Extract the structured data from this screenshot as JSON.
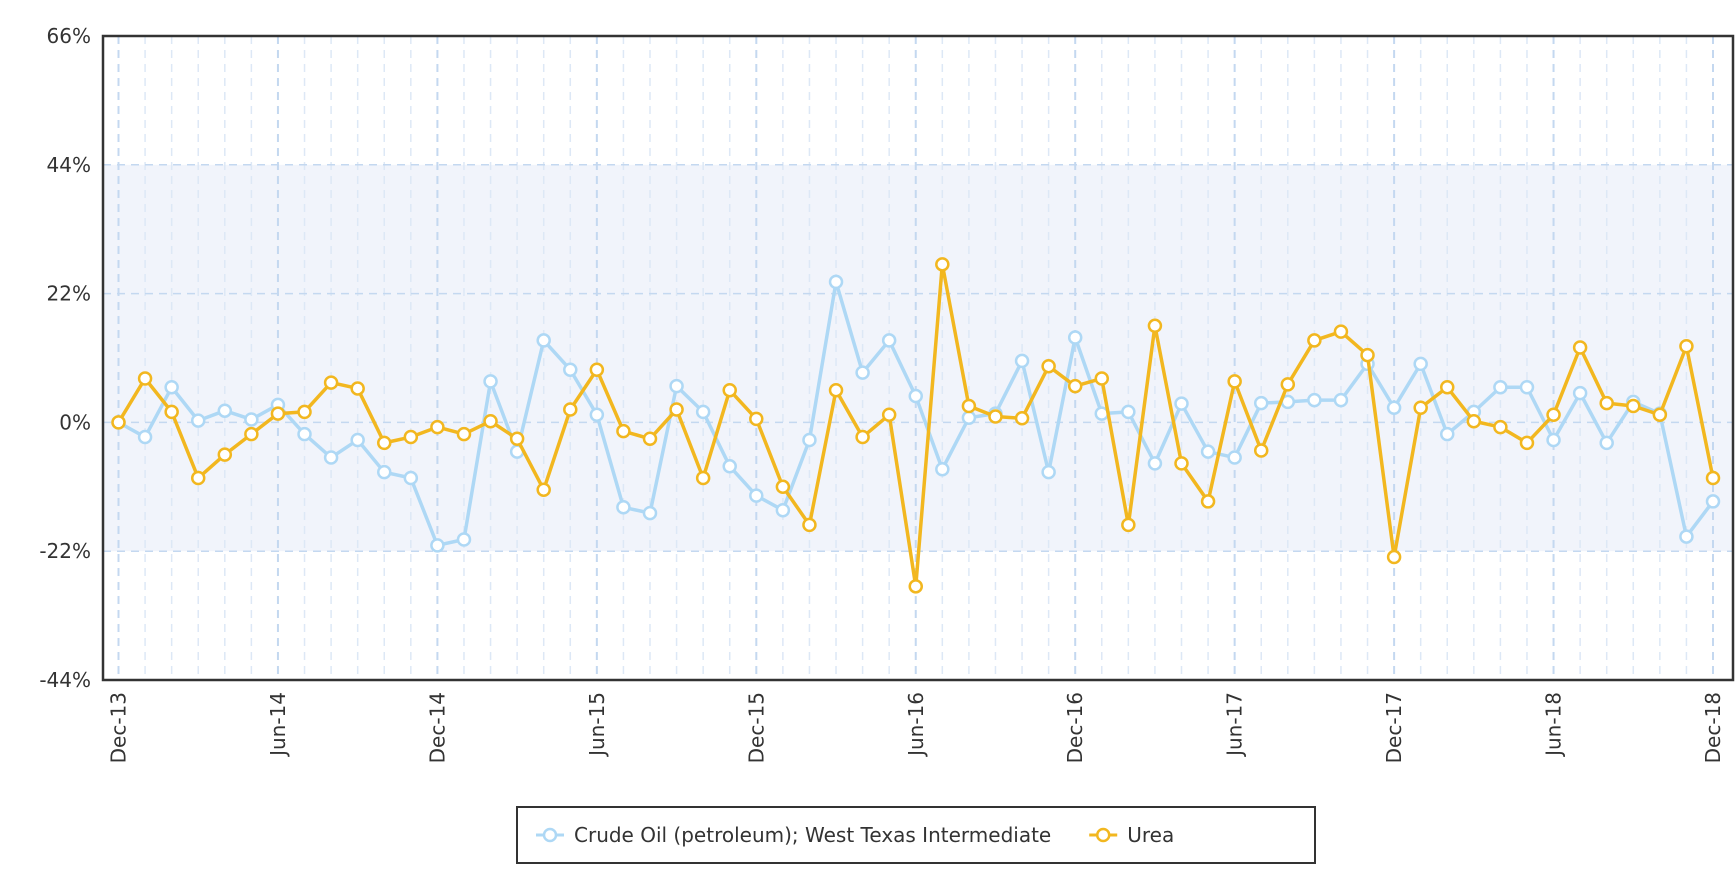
{
  "chart_data": {
    "type": "line",
    "categories": [
      "Dec-13",
      null,
      null,
      null,
      null,
      null,
      "Jun-14",
      null,
      null,
      null,
      null,
      null,
      "Dec-14",
      null,
      null,
      null,
      null,
      null,
      "Jun-15",
      null,
      null,
      null,
      null,
      null,
      "Dec-15",
      null,
      null,
      null,
      null,
      null,
      "Jun-16",
      null,
      null,
      null,
      null,
      null,
      "Dec-16",
      null,
      null,
      null,
      null,
      null,
      "Jun-17",
      null,
      null,
      null,
      null,
      null,
      "Dec-17",
      null,
      null,
      null,
      null,
      null,
      "Jun-18",
      null,
      null,
      null,
      null,
      null,
      "Dec-18"
    ],
    "series": [
      {
        "name": "Crude Oil (petroleum); West Texas Intermediate",
        "color": "#aed8f5",
        "values": [
          0,
          -2.5,
          6,
          0.3,
          2,
          0.5,
          3,
          -2,
          -6,
          -3,
          -8.5,
          -9.5,
          -21,
          -20,
          7,
          -5,
          14,
          9,
          1.3,
          -14.5,
          -15.5,
          6.2,
          1.8,
          -7.5,
          -12.5,
          -15,
          -3,
          24,
          8.5,
          14,
          4.5,
          -8,
          0.8,
          1.5,
          10.5,
          -8.5,
          14.5,
          1.5,
          1.8,
          -7,
          3.2,
          -5,
          -6,
          3.3,
          3.5,
          3.8,
          3.8,
          10,
          2.5,
          10,
          -2,
          1.8,
          6,
          6,
          -3,
          5,
          -3.5,
          3.5,
          1.5,
          -19.5,
          -13.5
        ]
      },
      {
        "name": "Urea",
        "color": "#f2b71f",
        "values": [
          0,
          7.5,
          1.8,
          -9.5,
          -5.5,
          -2,
          1.5,
          1.8,
          6.8,
          5.8,
          -3.5,
          -2.5,
          -0.8,
          -2,
          0.2,
          -2.8,
          -11.5,
          2.2,
          9,
          -1.5,
          -2.8,
          2.2,
          -9.5,
          5.5,
          0.6,
          -11,
          -17.5,
          5.5,
          -2.5,
          1.3,
          -28,
          27,
          2.8,
          1,
          0.7,
          9.6,
          6.2,
          7.5,
          -17.5,
          16.5,
          -7,
          -13.5,
          7,
          -4.8,
          6.5,
          14,
          15.5,
          11.5,
          -23,
          2.5,
          6,
          0.2,
          -0.8,
          -3.5,
          1.3,
          12.8,
          3.3,
          2.8,
          1.3,
          13,
          -9.5
        ]
      }
    ],
    "ylim": [
      -44,
      66
    ],
    "yticks": [
      {
        "value": -44,
        "label": "-44%"
      },
      {
        "value": -22,
        "label": "-22%"
      },
      {
        "value": 0,
        "label": "0%"
      },
      {
        "value": 22,
        "label": "22%"
      },
      {
        "value": 44,
        "label": "44%"
      },
      {
        "value": 66,
        "label": "66%"
      }
    ],
    "band": {
      "from": -22,
      "to": 44,
      "color": "#f1f4fb"
    },
    "grid": true
  }
}
